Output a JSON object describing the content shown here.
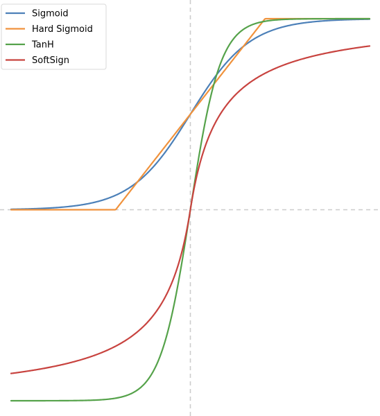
{
  "chart_data": {
    "type": "line",
    "title": "",
    "xlabel": "",
    "ylabel": "",
    "xlim": [
      -6,
      6
    ],
    "ylim": [
      -1.02,
      1.02
    ],
    "grid": false,
    "reference_lines": {
      "x": 0,
      "y": 0,
      "style": "dashed"
    },
    "legend": {
      "position": "top-left"
    },
    "x": [
      -6,
      -5,
      -4,
      -3,
      -2.5,
      -2,
      -1,
      0,
      1,
      2,
      2.5,
      3,
      4,
      5,
      6
    ],
    "series": [
      {
        "name": "Sigmoid",
        "color": "#4c80b8",
        "values": [
          0.002,
          0.007,
          0.018,
          0.047,
          0.076,
          0.119,
          0.269,
          0.5,
          0.731,
          0.881,
          0.924,
          0.953,
          0.982,
          0.993,
          0.998
        ]
      },
      {
        "name": "Hard Sigmoid",
        "color": "#f0923c",
        "values": [
          0,
          0,
          0,
          0,
          0,
          0.1,
          0.3,
          0.5,
          0.7,
          0.9,
          1,
          1,
          1,
          1,
          1
        ]
      },
      {
        "name": "TanH",
        "color": "#55a24a",
        "values": [
          -1.0,
          -1.0,
          -0.999,
          -0.995,
          -0.987,
          -0.964,
          -0.762,
          0,
          0.762,
          0.964,
          0.987,
          0.995,
          0.999,
          1.0,
          1.0
        ]
      },
      {
        "name": "SoftSign",
        "color": "#c8433f",
        "values": [
          -0.857,
          -0.833,
          -0.8,
          -0.75,
          -0.714,
          -0.667,
          -0.5,
          0,
          0.5,
          0.667,
          0.714,
          0.75,
          0.8,
          0.833,
          0.857
        ]
      }
    ]
  }
}
